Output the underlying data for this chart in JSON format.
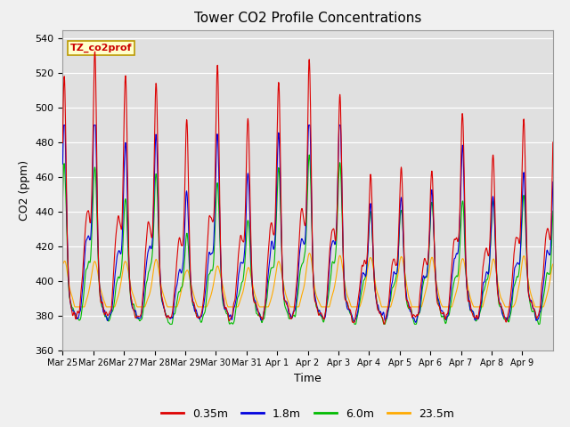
{
  "title": "Tower CO2 Profile Concentrations",
  "xlabel": "Time",
  "ylabel": "CO2 (ppm)",
  "ylim": [
    360,
    545
  ],
  "yticks": [
    360,
    380,
    400,
    420,
    440,
    460,
    480,
    500,
    520,
    540
  ],
  "series_labels": [
    "0.35m",
    "1.8m",
    "6.0m",
    "23.5m"
  ],
  "series_colors": [
    "#dd0000",
    "#0000dd",
    "#00bb00",
    "#ffaa00"
  ],
  "annotation_text": "TZ_co2prof",
  "annotation_bg": "#ffffcc",
  "annotation_border": "#bb9900",
  "xticklabels": [
    "Mar 25",
    "Mar 26",
    "Mar 27",
    "Mar 28",
    "Mar 29",
    "Mar 30",
    "Mar 31",
    "Apr 1",
    "Apr 2",
    "Apr 3",
    "Apr 4",
    "Apr 5",
    "Apr 6",
    "Apr 7",
    "Apr 8",
    "Apr 9"
  ],
  "spike_heights_red": [
    512,
    518,
    507,
    501,
    480,
    508,
    481,
    500,
    514,
    493,
    452,
    454,
    452,
    484,
    463,
    481,
    493
  ],
  "spike_heights_blue": [
    489,
    490,
    470,
    473,
    440,
    470,
    450,
    475,
    484,
    483,
    435,
    437,
    440,
    465,
    440,
    452,
    465
  ],
  "spike_heights_green": [
    458,
    456,
    437,
    450,
    418,
    445,
    425,
    455,
    460,
    458,
    430,
    433,
    435,
    437,
    435,
    440,
    440
  ],
  "spike_heights_orange": [
    404,
    405,
    405,
    405,
    400,
    402,
    400,
    405,
    408,
    408,
    407,
    407,
    406,
    406,
    406,
    407,
    408
  ],
  "base_red": 383,
  "base_blue": 383,
  "base_green": 382,
  "base_orange": 388
}
